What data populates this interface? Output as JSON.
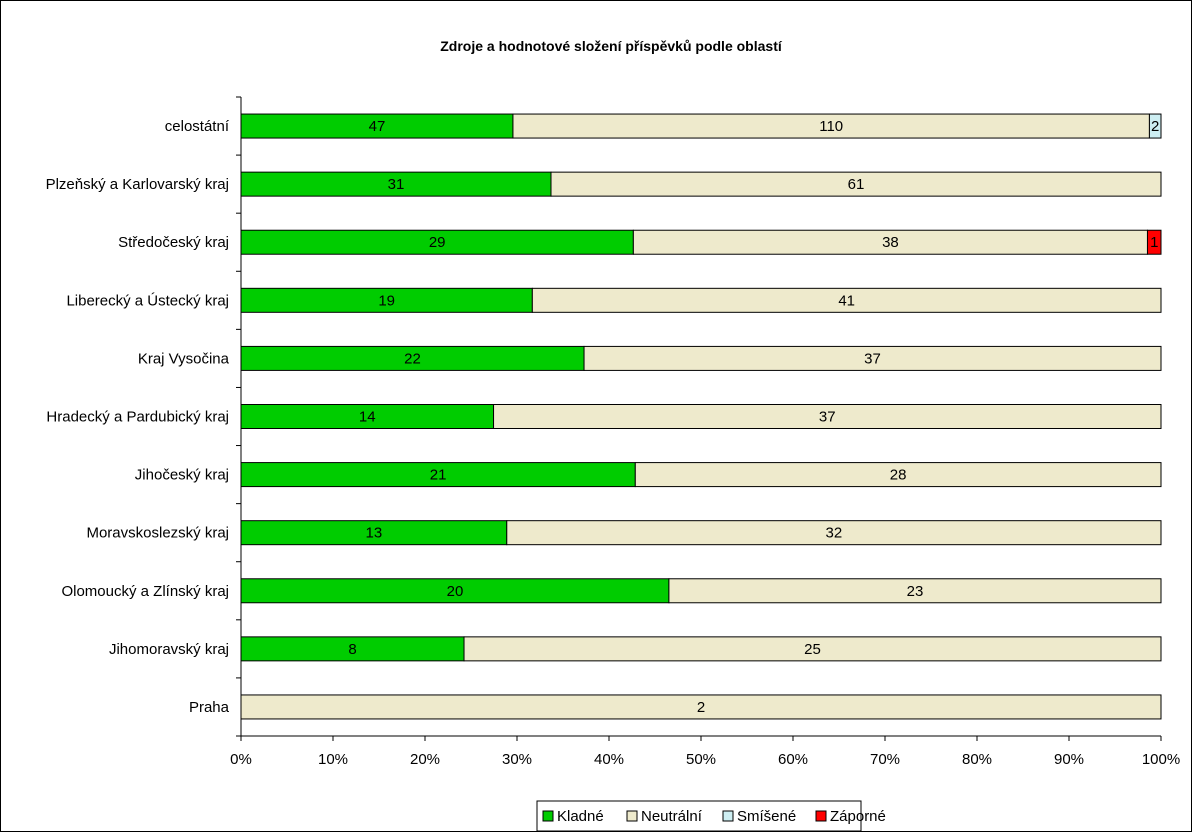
{
  "chart_data": {
    "type": "bar",
    "orientation": "horizontal",
    "stacked": "percent",
    "title": "Zdroje a hodnotové složení příspěvků podle oblastí",
    "categories": [
      "celostátní",
      "Plzeňský a Karlovarský kraj",
      "Středočeský kraj",
      "Liberecký a Ústecký kraj",
      "Kraj Vysočina",
      "Hradecký a Pardubický kraj",
      "Jihočeský kraj",
      "Moravskoslezský kraj",
      "Olomoucký a Zlínský kraj",
      "Jihomoravský kraj",
      "Praha"
    ],
    "series": [
      {
        "name": "Kladné",
        "color": "#00cc00",
        "values": [
          47,
          31,
          29,
          19,
          22,
          14,
          21,
          13,
          20,
          8,
          0
        ]
      },
      {
        "name": "Neutrální",
        "color": "#eeeacc",
        "values": [
          110,
          61,
          38,
          41,
          37,
          37,
          28,
          32,
          23,
          25,
          2
        ]
      },
      {
        "name": "Smíšené",
        "color": "#cdeef2",
        "values": [
          2,
          0,
          0,
          0,
          0,
          0,
          0,
          0,
          0,
          0,
          0
        ]
      },
      {
        "name": "Záporné",
        "color": "#ff0000",
        "values": [
          0,
          0,
          1,
          0,
          0,
          0,
          0,
          0,
          0,
          0,
          0
        ]
      }
    ],
    "xlim": [
      0,
      100
    ],
    "xticks": [
      "0%",
      "10%",
      "20%",
      "30%",
      "40%",
      "50%",
      "60%",
      "70%",
      "80%",
      "90%",
      "100%"
    ],
    "grid": false,
    "legend": "bottom"
  }
}
